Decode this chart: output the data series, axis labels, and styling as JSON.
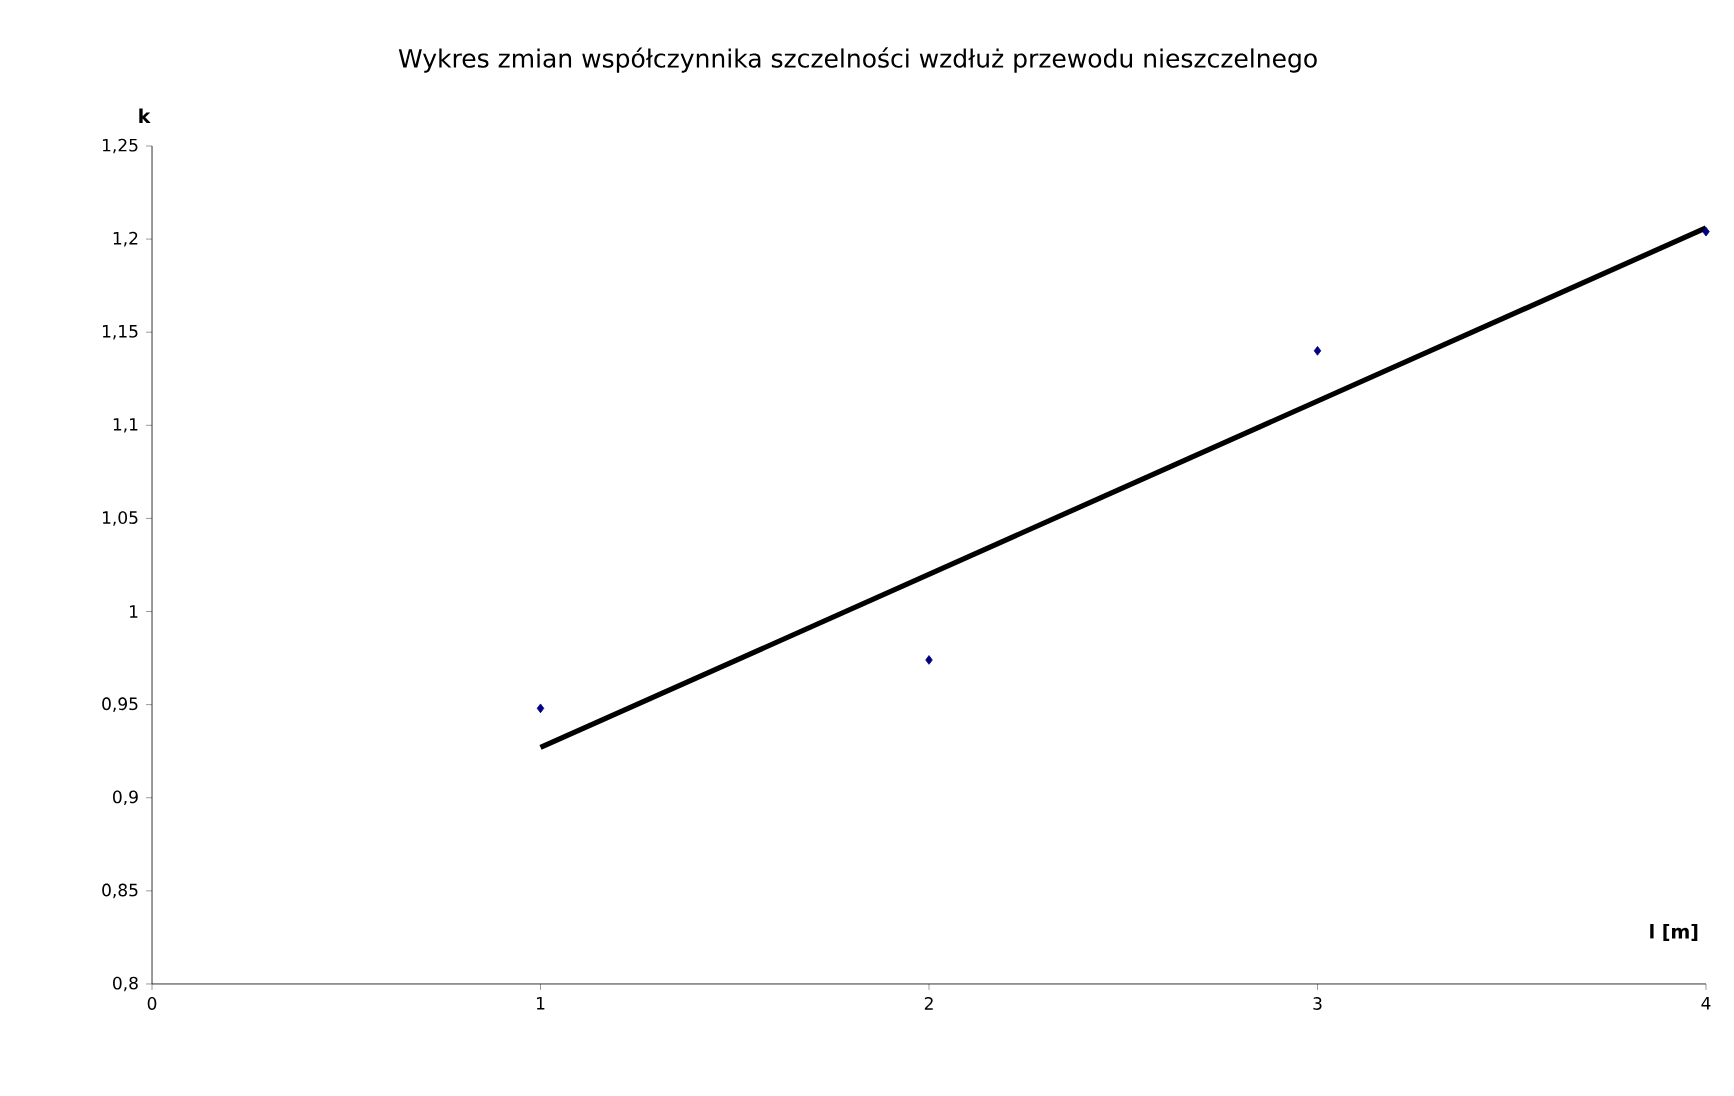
{
  "chart_data": {
    "type": "scatter",
    "title": "Wykres zmian współczynnika szczelności wzdłuż przewodu nieszczelnego",
    "xlabel": "l [m]",
    "ylabel": "k",
    "xlim": [
      0,
      4
    ],
    "xticks": [
      0,
      1,
      2,
      3,
      4
    ],
    "ylim": [
      0.8,
      1.25
    ],
    "yticks": [
      {
        "value": 0.8,
        "label": "0,8"
      },
      {
        "value": 0.85,
        "label": "0,85"
      },
      {
        "value": 0.9,
        "label": "0,9"
      },
      {
        "value": 0.95,
        "label": "0,95"
      },
      {
        "value": 1,
        "label": "1"
      },
      {
        "value": 1.05,
        "label": "1,05"
      },
      {
        "value": 1.1,
        "label": "1,1"
      },
      {
        "value": 1.15,
        "label": "1,15"
      },
      {
        "value": 1.2,
        "label": "1,2"
      },
      {
        "value": 1.25,
        "label": "1,25"
      }
    ],
    "grid": false,
    "legend": false,
    "series": [
      {
        "color": "#000080",
        "marker": "diamond",
        "x": [
          1,
          2,
          3,
          4
        ],
        "values": [
          0.948,
          0.974,
          1.14,
          1.204
        ]
      },
      {
        "type": "line",
        "color": "#000000",
        "marker": "none",
        "line_style": "solid",
        "x": [
          1,
          4
        ],
        "values": [
          0.927,
          1.206
        ]
      }
    ]
  }
}
